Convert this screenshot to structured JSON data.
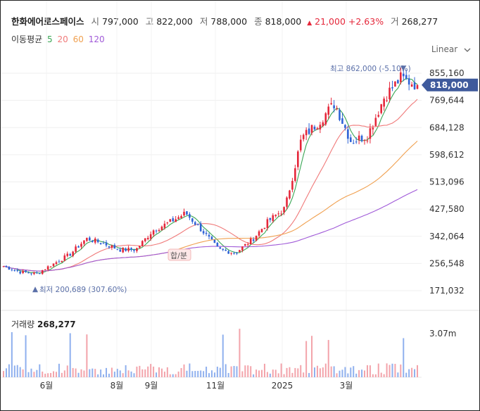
{
  "header": {
    "name": "한화에어로스페이스",
    "open_label": "시",
    "open": "797,000",
    "high_label": "고",
    "high": "822,000",
    "low_label": "저",
    "low": "788,000",
    "close_label": "종",
    "close": "818,000",
    "change_arrow": "▲",
    "change": "21,000",
    "change_pct": "+2.63%",
    "volume_label": "거",
    "volume": "268,277"
  },
  "ma_legend": {
    "title": "이동평균",
    "periods": [
      {
        "label": "5",
        "color": "#3aa655"
      },
      {
        "label": "20",
        "color": "#f07a7a"
      },
      {
        "label": "60",
        "color": "#f0a050"
      },
      {
        "label": "120",
        "color": "#a05ad8"
      }
    ]
  },
  "scale_selector": "Linear",
  "chart_data": {
    "type": "candlestick",
    "y_ticks": [
      "855,160",
      "769,644",
      "684,128",
      "598,612",
      "513,096",
      "427,580",
      "342,064",
      "256,548",
      "171,032"
    ],
    "y_tick_values": [
      855160,
      769644,
      684128,
      598612,
      513096,
      427580,
      342064,
      256548,
      171032
    ],
    "ylim": [
      120000,
      900000
    ],
    "x_ticks": [
      "6월",
      "8월",
      "9월",
      "11월",
      "2025",
      "3월"
    ],
    "current_price_label": "818,000",
    "current_price": 818000,
    "high_annotation": "최고 862,000 (-5.10%)",
    "high_marker": "▼",
    "low_annotation": "최저 200,689 (307.60%)",
    "low_marker": "▲",
    "event_marker": "합/분",
    "close_path": [
      [
        "2024-04",
        248000
      ],
      [
        "2024-05",
        230000
      ],
      [
        "2024-05-mid",
        225000
      ],
      [
        "2024-06",
        255000
      ],
      [
        "2024-07",
        285000
      ],
      [
        "2024-07-mid",
        335000
      ],
      [
        "2024-08",
        320000
      ],
      [
        "2024-08-mid",
        300000
      ],
      [
        "2024-09",
        300000
      ],
      [
        "2024-10",
        360000
      ],
      [
        "2024-10-mid",
        385000
      ],
      [
        "2024-11",
        415000
      ],
      [
        "2024-11-mid",
        360000
      ],
      [
        "2024-12",
        300000
      ],
      [
        "2024-12-mid",
        290000
      ],
      [
        "2025-01",
        330000
      ],
      [
        "2025-01-mid",
        390000
      ],
      [
        "2025-02",
        430000
      ],
      [
        "2025-02-mid",
        650000
      ],
      [
        "2025-03",
        700000
      ],
      [
        "2025-03-mid",
        760000
      ],
      [
        "2025-04",
        640000
      ],
      [
        "2025-04-mid",
        660000
      ],
      [
        "2025-05",
        780000
      ],
      [
        "2025-05-mid",
        840000
      ],
      [
        "2025-06",
        818000
      ]
    ],
    "moving_averages": [
      {
        "name": "5",
        "color": "#3aa655"
      },
      {
        "name": "20",
        "color": "#f07a7a"
      },
      {
        "name": "60",
        "color": "#f0a050"
      },
      {
        "name": "120",
        "color": "#a05ad8"
      }
    ],
    "volume": {
      "label": "거래량",
      "value": "268,277",
      "y_tick": "3.07m",
      "y_tick_value": 3070000
    }
  }
}
